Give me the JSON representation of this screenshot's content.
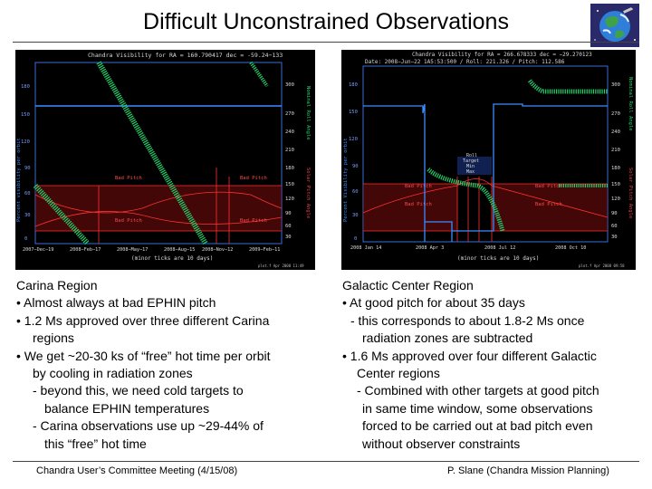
{
  "title": "Difficult Unconstrained Observations",
  "left_plot": {
    "header": "Chandra Visibility for RA = 160.790417 dec = -59.24−133",
    "y_left_label": "Percent visibility per orbit",
    "y_right_top_label": "Nominal Roll Angle",
    "y_right_bottom_label": "Solar Pitch Angle",
    "y_ticks_top": [
      "180",
      "150",
      "120"
    ],
    "y_ticks_mid": [
      "90",
      "60",
      "30",
      "0"
    ],
    "roll_ticks": [
      "300",
      "270",
      "240",
      "210"
    ],
    "pitch_ticks": [
      "180",
      "150",
      "120",
      "90",
      "60",
      "30"
    ],
    "x_ticks": [
      "2007−Dec−19",
      "2008−Feb−17",
      "2008−May−17",
      "2008−Aug−15",
      "2008−Nov−12",
      "2009−Feb−11"
    ],
    "x_label": "(minor ticks are 10 days)",
    "bad_pitch_labels": [
      "Bad Pitch",
      "Bad Pitch",
      "Bad Pitch",
      "Bad Pitch"
    ],
    "footnote": "plot.f Apr 2008 11:49"
  },
  "right_plot": {
    "header_lines": [
      "Chandra Visibility for RA = 266.678333 dec = −29.270123",
      "Date: 2008−Jun−22 1A5:53:500 / Roll: 221.326 / Pitch: 112.586"
    ],
    "y_left_label": "Percent Visibility per orbit",
    "y_right_top_label": "Nominal Roll Angle",
    "y_right_bottom_label": "Solar Pitch Angle",
    "y_ticks": [
      "180",
      "150",
      "120",
      "90",
      "60",
      "30",
      "0"
    ],
    "roll_ticks": [
      "300",
      "270",
      "240",
      "210"
    ],
    "pitch_ticks": [
      "180",
      "150",
      "120",
      "90",
      "60",
      "30"
    ],
    "x_ticks": [
      "2008 Jan 14",
      "2008 Apr 3",
      "2008 Jul 12",
      "2008 Oct 10"
    ],
    "x_label": "(minor ticks are 10 days)",
    "bad_pitch_labels": [
      "Bad Pitch",
      "Bad Pitch",
      "Bad Pitch",
      "Bad Pitch"
    ],
    "annotation": [
      "Roll",
      "Target",
      "Min",
      "Max"
    ],
    "footnote": "plot.f Apr 2008 09:58"
  },
  "left_caption": [
    "Carina Region",
    "• Almost always at bad EPHIN pitch",
    "• 1.2 Ms approved over three different Carina",
    "regions",
    "• We get ~20-30 ks of “free” hot time per orbit",
    "by cooling in radiation zones",
    "- beyond this, we need cold targets to",
    "balance EPHIN temperatures",
    "- Carina observations use up ~29-44% of",
    "this “free” hot time"
  ],
  "right_caption": [
    "Galactic Center Region",
    "• At good pitch for about 35 days",
    "- this corresponds to about 1.8-2 Ms once",
    "radiation zones are subtracted",
    "• 1.6 Ms approved over four different Galactic",
    "Center regions",
    "- Combined with other targets at good pitch",
    "in same time window, some observations",
    "forced to be carried out at bad pitch even",
    "without observer constraints"
  ],
  "footer_left": "Chandra User’s Committee Meeting (4/15/08)",
  "footer_right": "P. Slane (Chandra Mission Planning)",
  "colors": {
    "roll": "#2b6cff",
    "pitch": "#23d26b",
    "visibility": "#3c8cff",
    "bad": "#d01818"
  }
}
